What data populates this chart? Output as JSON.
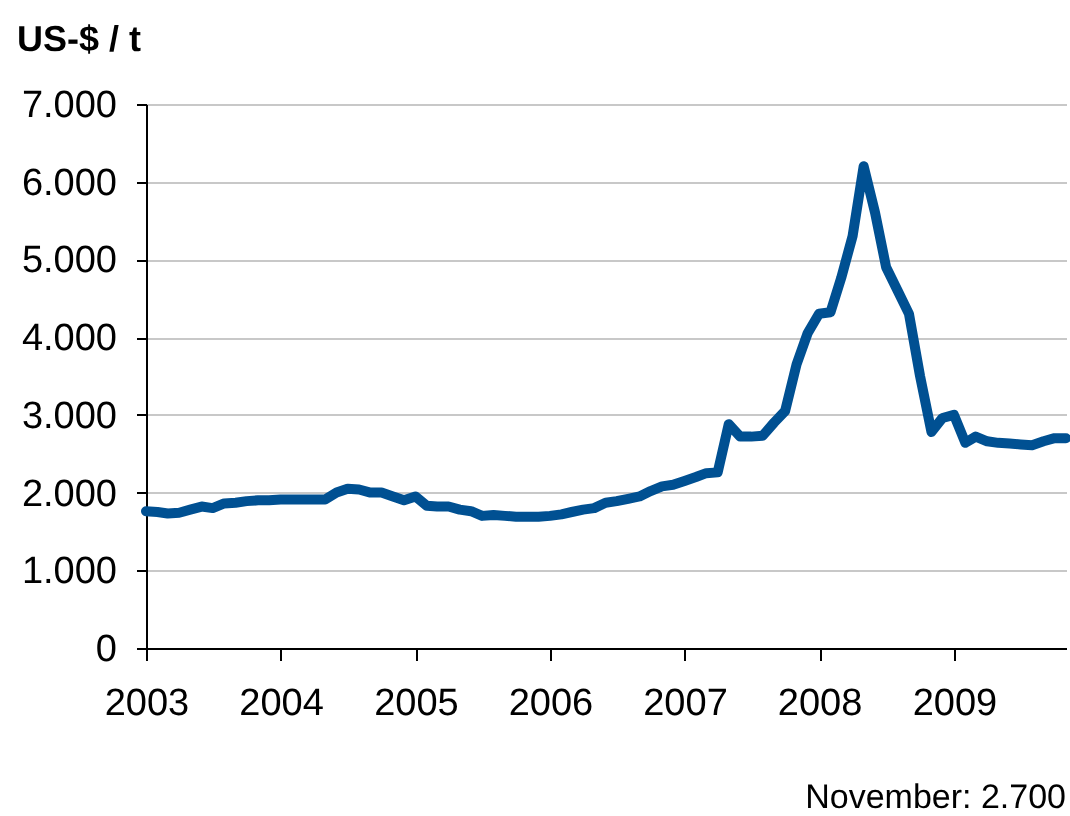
{
  "chart_data": {
    "type": "line",
    "ylabel": "US-$ / t",
    "annotations": [
      "November: 2.700"
    ],
    "x": [
      "2003-01",
      "2003-02",
      "2003-03",
      "2003-04",
      "2003-05",
      "2003-06",
      "2003-07",
      "2003-08",
      "2003-09",
      "2003-10",
      "2003-11",
      "2003-12",
      "2004-01",
      "2004-02",
      "2004-03",
      "2004-04",
      "2004-05",
      "2004-06",
      "2004-07",
      "2004-08",
      "2004-09",
      "2004-10",
      "2004-11",
      "2004-12",
      "2005-01",
      "2005-02",
      "2005-03",
      "2005-04",
      "2005-05",
      "2005-06",
      "2005-07",
      "2005-08",
      "2005-09",
      "2005-10",
      "2005-11",
      "2005-12",
      "2006-01",
      "2006-02",
      "2006-03",
      "2006-04",
      "2006-05",
      "2006-06",
      "2006-07",
      "2006-08",
      "2006-09",
      "2006-10",
      "2006-11",
      "2006-12",
      "2007-01",
      "2007-02",
      "2007-03",
      "2007-04",
      "2007-05",
      "2007-06",
      "2007-07",
      "2007-08",
      "2007-09",
      "2007-10",
      "2007-11",
      "2007-12",
      "2008-01",
      "2008-02",
      "2008-03",
      "2008-04",
      "2008-05",
      "2008-06",
      "2008-07",
      "2008-08",
      "2008-09",
      "2008-10",
      "2008-11",
      "2008-12",
      "2009-01",
      "2009-02",
      "2009-03",
      "2009-04",
      "2009-05",
      "2009-06",
      "2009-07",
      "2009-08",
      "2009-09",
      "2009-10",
      "2009-11"
    ],
    "series": [
      {
        "color": "#005092",
        "values": [
          1760,
          1750,
          1730,
          1740,
          1780,
          1820,
          1800,
          1860,
          1870,
          1890,
          1900,
          1900,
          1910,
          1910,
          1910,
          1910,
          1910,
          2000,
          2050,
          2040,
          2000,
          2000,
          1950,
          1900,
          1950,
          1830,
          1820,
          1820,
          1780,
          1760,
          1700,
          1710,
          1700,
          1690,
          1690,
          1690,
          1700,
          1720,
          1750,
          1780,
          1800,
          1870,
          1890,
          1920,
          1950,
          2020,
          2080,
          2100,
          2150,
          2200,
          2250,
          2260,
          2880,
          2720,
          2720,
          2730,
          2900,
          3050,
          3650,
          4050,
          4300,
          4320,
          4760,
          5300,
          6200,
          5600,
          4900,
          4600,
          4300,
          3500,
          2780,
          2960,
          3000,
          2640,
          2720,
          2660,
          2640,
          2630,
          2620,
          2610,
          2660,
          2700,
          2700
        ]
      }
    ],
    "xlim": [
      "2003-01",
      "2009-11"
    ],
    "xticks": [
      "2003",
      "2004",
      "2005",
      "2006",
      "2007",
      "2008",
      "2009"
    ],
    "ylim": [
      0,
      7000
    ],
    "yticks": [
      0,
      {
        "value": 1000,
        "label": "1.000"
      },
      {
        "value": 2000,
        "label": "2.000"
      },
      {
        "value": 3000,
        "label": "3.000"
      },
      {
        "value": 4000,
        "label": "4.000"
      },
      {
        "value": 5000,
        "label": "5.000"
      },
      {
        "value": 6000,
        "label": "6.000"
      },
      {
        "value": 7000,
        "label": "7.000"
      }
    ],
    "grid": "y"
  }
}
